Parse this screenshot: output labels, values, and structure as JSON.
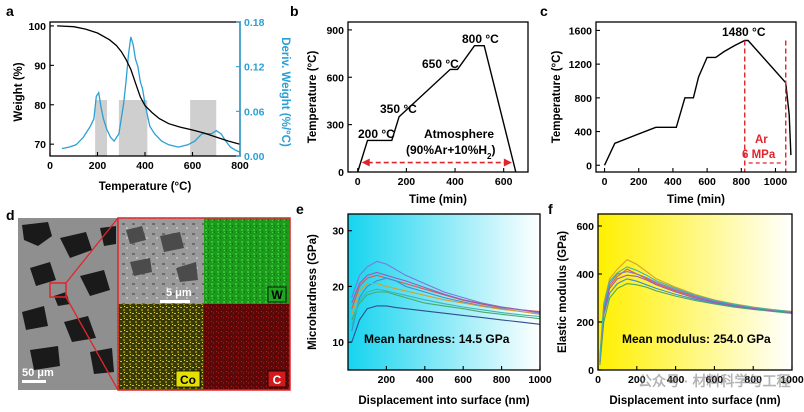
{
  "panels": {
    "a": "a",
    "b": "b",
    "c": "c",
    "d": "d",
    "e": "e",
    "f": "f"
  },
  "chart_data": [
    {
      "id": "a",
      "type": "line",
      "xlabel": "Temperature (°C)",
      "ylabel": "Weight (%)",
      "y2label": "Deriv. Weight (%/°C)",
      "xlim": [
        0,
        800
      ],
      "ylim": [
        67,
        101
      ],
      "y2lim": [
        0,
        0.18
      ],
      "xticks": [
        "0",
        "200",
        "400",
        "600",
        "800"
      ],
      "yticks": [
        "70",
        "80",
        "90",
        "100"
      ],
      "y2ticks": [
        "0.00",
        "0.06",
        "0.12",
        "0.18"
      ],
      "colors": {
        "weight": "#000000",
        "deriv": "#2aa0d6",
        "shade": "#cfcfcf"
      },
      "series": [
        {
          "name": "Weight (%)",
          "axis": "left",
          "x": [
            30,
            100,
            150,
            200,
            250,
            280,
            300,
            320,
            340,
            360,
            380,
            400,
            430,
            460,
            500,
            550,
            600,
            650,
            700,
            750,
            800
          ],
          "y": [
            100,
            99.8,
            99.2,
            98.2,
            96.5,
            95,
            93.5,
            91.5,
            89,
            85.5,
            82,
            79.8,
            78,
            76.5,
            75.2,
            74.3,
            73.6,
            72.8,
            71.8,
            70.8,
            70
          ]
        },
        {
          "name": "Deriv. Weight (%/°C)",
          "axis": "right",
          "x": [
            50,
            80,
            110,
            140,
            170,
            185,
            195,
            205,
            215,
            225,
            240,
            255,
            270,
            290,
            310,
            320,
            330,
            340,
            350,
            360,
            370,
            380,
            390,
            400,
            420,
            440,
            470,
            500,
            540,
            580,
            610,
            640,
            660,
            680,
            700,
            720,
            740,
            760,
            780,
            800
          ],
          "y": [
            0.01,
            0.012,
            0.015,
            0.025,
            0.04,
            0.05,
            0.08,
            0.085,
            0.065,
            0.05,
            0.035,
            0.025,
            0.02,
            0.03,
            0.07,
            0.1,
            0.135,
            0.16,
            0.15,
            0.13,
            0.12,
            0.1,
            0.09,
            0.07,
            0.04,
            0.03,
            0.02,
            0.015,
            0.012,
            0.015,
            0.02,
            0.03,
            0.03,
            0.03,
            0.034,
            0.03,
            0.02,
            0.012,
            0.008,
            0.005
          ]
        }
      ],
      "shaded_ranges": [
        [
          190,
          240
        ],
        [
          290,
          410
        ],
        [
          590,
          700
        ]
      ]
    },
    {
      "id": "b",
      "type": "line",
      "xlabel": "Time (min)",
      "ylabel": "Temperature (°C)",
      "xlim": [
        -40,
        700
      ],
      "ylim": [
        0,
        950
      ],
      "xticks": [
        "0",
        "200",
        "400",
        "600"
      ],
      "yticks": [
        "0",
        "300",
        "600",
        "900"
      ],
      "series": [
        {
          "x": [
            0,
            40,
            140,
            170,
            380,
            410,
            480,
            520,
            650
          ],
          "y": [
            0,
            200,
            200,
            350,
            650,
            650,
            800,
            800,
            0
          ]
        }
      ],
      "annotations": [
        "200 °C",
        "350 °C",
        "650 °C",
        "800 °C",
        "Atmosphere",
        "(90%Ar+10%H"
      ],
      "annotation_sub": "2",
      "annotation_close": ")",
      "arrow_range": [
        0,
        650
      ],
      "arrow_y": 60,
      "colors": {
        "line": "#000000",
        "arrow": "#e0262c"
      }
    },
    {
      "id": "c",
      "type": "line",
      "xlabel": "Time (min)",
      "ylabel": "Temperature (°C)",
      "xlim": [
        -50,
        1120
      ],
      "ylim": [
        -80,
        1700
      ],
      "xticks": [
        "0",
        "200",
        "400",
        "600",
        "800",
        "1000"
      ],
      "yticks": [
        "0",
        "400",
        "800",
        "1200",
        "1600"
      ],
      "series": [
        {
          "x": [
            0,
            60,
            300,
            420,
            470,
            520,
            550,
            600,
            650,
            700,
            760,
            820,
            840,
            1060,
            1080,
            1090
          ],
          "y": [
            0,
            260,
            450,
            450,
            800,
            800,
            1050,
            1280,
            1280,
            1350,
            1420,
            1480,
            1480,
            980,
            600,
            120
          ]
        }
      ],
      "annotations": [
        "1480 °C",
        "Ar",
        "6 MPa"
      ],
      "dashed_x": [
        820,
        1060
      ],
      "colors": {
        "line": "#000000",
        "dash": "#e0262c"
      }
    },
    {
      "id": "e",
      "type": "line",
      "xlabel": "Displacement into surface (nm)",
      "ylabel": "Microhardness (GPa)",
      "xlim": [
        0,
        1000
      ],
      "ylim": [
        5,
        33
      ],
      "xticks": [
        "200",
        "400",
        "600",
        "800",
        "1000"
      ],
      "yticks": [
        "10",
        "20",
        "30"
      ],
      "annotation": "Mean hardness: 14.5 GPa",
      "background_gradient": [
        "#16d4ef",
        "#ffffff"
      ],
      "series": [
        {
          "x": [
            20,
            60,
            100,
            150,
            200,
            250,
            300,
            400,
            500,
            600,
            700,
            800,
            900,
            1000
          ],
          "y": [
            16,
            20,
            21.5,
            22,
            21.5,
            21,
            20.5,
            19.5,
            18.5,
            17.5,
            16.8,
            16.2,
            15.8,
            15.5
          ],
          "color": "#e2584a"
        },
        {
          "x": [
            20,
            60,
            100,
            150,
            200,
            250,
            300,
            400,
            500,
            600,
            700,
            800,
            900,
            1000
          ],
          "y": [
            12,
            18,
            20,
            21,
            21.5,
            21,
            20,
            19,
            18,
            17.2,
            16.5,
            16,
            15.5,
            15
          ],
          "color": "#3a8fd1"
        },
        {
          "x": [
            20,
            60,
            100,
            150,
            200,
            250,
            300,
            400,
            500,
            600,
            700,
            800,
            900,
            1000
          ],
          "y": [
            18,
            22,
            23.5,
            24.5,
            24,
            23,
            22,
            20.5,
            19,
            18,
            17,
            16.3,
            15.8,
            15.2
          ],
          "color": "#7a7ad8"
        },
        {
          "x": [
            20,
            60,
            100,
            150,
            200,
            250,
            300,
            400,
            500,
            600,
            700,
            800,
            900,
            1000
          ],
          "y": [
            14,
            17,
            18.5,
            19,
            19,
            18.5,
            18,
            17,
            16.5,
            16,
            15.4,
            15,
            14.6,
            14.2
          ],
          "color": "#4aa86a"
        },
        {
          "x": [
            20,
            60,
            100,
            150,
            200,
            250,
            300,
            400,
            500,
            600,
            700,
            800,
            900,
            1000
          ],
          "y": [
            10,
            14,
            16,
            16.5,
            16.5,
            16.2,
            16,
            15.6,
            15.2,
            14.8,
            14.4,
            14,
            13.6,
            13.2
          ],
          "color": "#2d4f8f"
        },
        {
          "x": [
            20,
            60,
            100,
            150,
            200,
            250,
            300,
            400,
            500,
            600,
            700,
            800,
            900,
            1000
          ],
          "y": [
            15,
            19,
            20.5,
            20.5,
            20,
            19.6,
            19.2,
            18.4,
            17.6,
            17,
            16.4,
            15.9,
            15.5,
            15
          ],
          "color": "#d7a12e"
        },
        {
          "x": [
            20,
            60,
            100,
            150,
            200,
            250,
            300,
            400,
            500,
            600,
            700,
            800,
            900,
            1000
          ],
          "y": [
            17,
            20.5,
            22,
            22.5,
            22,
            21.5,
            21,
            19.8,
            18.6,
            17.6,
            16.9,
            16.3,
            15.8,
            15.4
          ],
          "color": "#9c5bb5"
        },
        {
          "x": [
            20,
            60,
            100,
            150,
            200,
            250,
            300,
            400,
            500,
            600,
            700,
            800,
            900,
            1000
          ],
          "y": [
            13,
            17.5,
            19,
            19.5,
            19.2,
            18.8,
            18.4,
            17.6,
            16.9,
            16.3,
            15.8,
            15.3,
            14.9,
            14.6
          ],
          "color": "#3bb6b0"
        }
      ]
    },
    {
      "id": "f",
      "type": "line",
      "xlabel": "Displacement into surface (nm)",
      "ylabel": "Elastic modulus (GPa)",
      "xlim": [
        0,
        1000
      ],
      "ylim": [
        0,
        650
      ],
      "xticks": [
        "0",
        "200",
        "400",
        "600",
        "800",
        "1000"
      ],
      "yticks": [
        "0",
        "200",
        "400",
        "600"
      ],
      "annotation": "Mean modulus: 254.0 GPa",
      "background_gradient": [
        "#fff000",
        "#ffffff"
      ],
      "series": [
        {
          "x": [
            10,
            30,
            60,
            100,
            150,
            200,
            250,
            300,
            400,
            500,
            600,
            700,
            800,
            900,
            1000
          ],
          "y": [
            30,
            250,
            350,
            390,
            420,
            400,
            380,
            360,
            330,
            305,
            285,
            270,
            258,
            248,
            240
          ],
          "color": "#e2584a"
        },
        {
          "x": [
            10,
            30,
            60,
            100,
            150,
            200,
            250,
            300,
            400,
            500,
            600,
            700,
            800,
            900,
            1000
          ],
          "y": [
            60,
            280,
            380,
            420,
            460,
            440,
            410,
            380,
            345,
            315,
            292,
            276,
            262,
            252,
            244
          ],
          "color": "#d7a12e"
        },
        {
          "x": [
            10,
            30,
            60,
            100,
            150,
            200,
            250,
            300,
            400,
            500,
            600,
            700,
            800,
            900,
            1000
          ],
          "y": [
            40,
            230,
            320,
            360,
            380,
            370,
            355,
            340,
            315,
            295,
            278,
            265,
            254,
            246,
            238
          ],
          "color": "#3a8fd1"
        },
        {
          "x": [
            10,
            30,
            60,
            100,
            150,
            200,
            250,
            300,
            400,
            500,
            600,
            700,
            800,
            900,
            1000
          ],
          "y": [
            20,
            200,
            300,
            340,
            360,
            355,
            345,
            330,
            308,
            290,
            275,
            262,
            252,
            244,
            236
          ],
          "color": "#4aa86a"
        },
        {
          "x": [
            10,
            30,
            60,
            100,
            150,
            200,
            250,
            300,
            400,
            500,
            600,
            700,
            800,
            900,
            1000
          ],
          "y": [
            50,
            260,
            360,
            400,
            410,
            400,
            385,
            365,
            335,
            308,
            287,
            272,
            260,
            250,
            242
          ],
          "color": "#7a7ad8"
        },
        {
          "x": [
            10,
            30,
            60,
            100,
            150,
            200,
            250,
            300,
            400,
            500,
            600,
            700,
            800,
            900,
            1000
          ],
          "y": [
            35,
            240,
            340,
            380,
            395,
            390,
            375,
            355,
            325,
            300,
            282,
            268,
            256,
            247,
            239
          ],
          "color": "#9c5bb5"
        },
        {
          "x": [
            10,
            30,
            60,
            100,
            150,
            200,
            250,
            300,
            400,
            500,
            600,
            700,
            800,
            900,
            1000
          ],
          "y": [
            45,
            270,
            370,
            405,
            430,
            415,
            395,
            372,
            340,
            312,
            290,
            274,
            261,
            251,
            243
          ],
          "color": "#3bb6b0"
        }
      ]
    }
  ],
  "micrograph": {
    "scale_large": "50 μm",
    "scale_small": "5 μm",
    "maps": [
      "W",
      "Co",
      "C"
    ],
    "colors": {
      "W": "#1fa51f",
      "Co": "#d8d000",
      "C": "#d21a1a",
      "frame": "#e0262c"
    }
  },
  "watermark": "公众号 · 材料科学与工程"
}
